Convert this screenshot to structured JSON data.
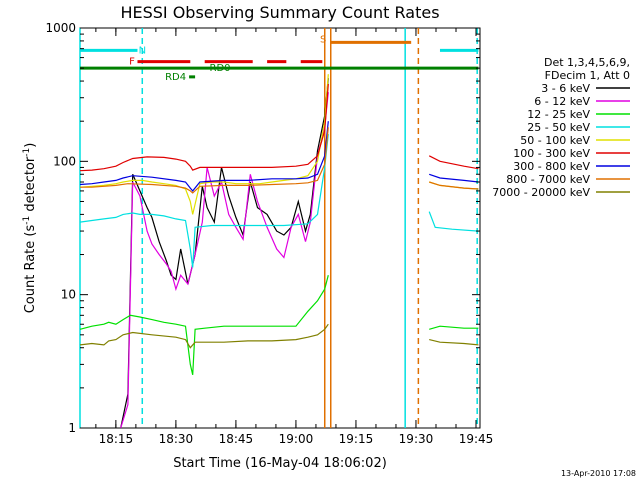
{
  "chart_data": {
    "type": "line",
    "title": "HESSI Observing Summary Count Rates",
    "xlabel": "Start Time (16-May-04 18:06:02)",
    "ylabel_main": "Count Rate (s",
    "ylabel_sup1": "-1",
    "ylabel_mid": " detector",
    "ylabel_sup2": "-1",
    "ylabel_end": ")",
    "y_scale": "log",
    "ylim": [
      1,
      1000
    ],
    "xlim": [
      18.1006,
      19.7667
    ],
    "y_ticks": [
      {
        "value": 1,
        "label": "1"
      },
      {
        "value": 10,
        "label": "10"
      },
      {
        "value": 100,
        "label": "100"
      },
      {
        "value": 1000,
        "label": "1000"
      }
    ],
    "x_ticks": [
      {
        "value": 18.25,
        "label": "18:15"
      },
      {
        "value": 18.5,
        "label": "18:30"
      },
      {
        "value": 18.75,
        "label": "18:45"
      },
      {
        "value": 19.0,
        "label": "19:00"
      },
      {
        "value": 19.25,
        "label": "19:15"
      },
      {
        "value": 19.5,
        "label": "19:30"
      },
      {
        "value": 19.75,
        "label": "19:45"
      }
    ],
    "legend_header": [
      "Det 1,3,4,5,6,9,",
      "FDecim 1, Att 0"
    ],
    "legend_position": "right",
    "series": [
      {
        "name": "3 - 6 keV",
        "color": "#000000",
        "points": [
          [
            18.27,
            1
          ],
          [
            18.3,
            1.8
          ],
          [
            18.32,
            80
          ],
          [
            18.35,
            60
          ],
          [
            18.38,
            45
          ],
          [
            18.4,
            38
          ],
          [
            18.43,
            25
          ],
          [
            18.46,
            18
          ],
          [
            18.48,
            14
          ],
          [
            18.5,
            13
          ],
          [
            18.52,
            22
          ],
          [
            18.55,
            12
          ],
          [
            18.58,
            20
          ],
          [
            18.61,
            65
          ],
          [
            18.63,
            45
          ],
          [
            18.66,
            35
          ],
          [
            18.69,
            90
          ],
          [
            18.72,
            55
          ],
          [
            18.75,
            38
          ],
          [
            18.78,
            28
          ],
          [
            18.81,
            70
          ],
          [
            18.84,
            45
          ],
          [
            18.88,
            40
          ],
          [
            18.92,
            30
          ],
          [
            18.95,
            28
          ],
          [
            18.98,
            32
          ],
          [
            19.01,
            50
          ],
          [
            19.04,
            30
          ],
          [
            19.06,
            40
          ],
          [
            19.09,
            120
          ],
          [
            19.12,
            220
          ],
          [
            19.135,
            420
          ]
        ],
        "gaps_after": []
      },
      {
        "name": "6 - 12 keV",
        "color": "#e000e0",
        "points": [
          [
            18.27,
            1
          ],
          [
            18.3,
            1.5
          ],
          [
            18.32,
            70
          ],
          [
            18.35,
            55
          ],
          [
            18.38,
            30
          ],
          [
            18.4,
            24
          ],
          [
            18.43,
            20
          ],
          [
            18.46,
            17
          ],
          [
            18.48,
            15
          ],
          [
            18.5,
            11
          ],
          [
            18.52,
            14
          ],
          [
            18.55,
            12
          ],
          [
            18.58,
            20
          ],
          [
            18.61,
            35
          ],
          [
            18.63,
            90
          ],
          [
            18.66,
            55
          ],
          [
            18.69,
            70
          ],
          [
            18.72,
            40
          ],
          [
            18.75,
            32
          ],
          [
            18.78,
            26
          ],
          [
            18.81,
            80
          ],
          [
            18.84,
            50
          ],
          [
            18.88,
            32
          ],
          [
            18.92,
            22
          ],
          [
            18.95,
            19
          ],
          [
            18.98,
            32
          ],
          [
            19.01,
            40
          ],
          [
            19.04,
            25
          ],
          [
            19.06,
            35
          ],
          [
            19.09,
            110
          ],
          [
            19.12,
            180
          ],
          [
            19.135,
            330
          ]
        ],
        "gaps_after": []
      },
      {
        "name": "12 - 25 keV",
        "color": "#00e000",
        "points": [
          [
            18.1006,
            5.5
          ],
          [
            18.15,
            5.8
          ],
          [
            18.2,
            6.0
          ],
          [
            18.22,
            6.2
          ],
          [
            18.25,
            6.0
          ],
          [
            18.28,
            6.5
          ],
          [
            18.31,
            7.0
          ],
          [
            18.35,
            6.8
          ],
          [
            18.4,
            6.5
          ],
          [
            18.45,
            6.2
          ],
          [
            18.5,
            6.0
          ],
          [
            18.54,
            5.8
          ],
          [
            18.56,
            3.0
          ],
          [
            18.57,
            2.5
          ],
          [
            18.58,
            5.5
          ],
          [
            18.62,
            5.6
          ],
          [
            18.7,
            5.8
          ],
          [
            18.8,
            5.8
          ],
          [
            18.9,
            5.8
          ],
          [
            19.0,
            5.8
          ],
          [
            19.05,
            7.5
          ],
          [
            19.09,
            9.0
          ],
          [
            19.12,
            11
          ],
          [
            19.135,
            14
          ],
          [
            19.555,
            5.5
          ],
          [
            19.6,
            5.8
          ],
          [
            19.7,
            5.6
          ],
          [
            19.76,
            5.6
          ]
        ],
        "gaps_after": [
          23
        ]
      },
      {
        "name": "25 - 50 keV",
        "color": "#00e0e0",
        "points": [
          [
            18.1006,
            35
          ],
          [
            18.15,
            36
          ],
          [
            18.2,
            37
          ],
          [
            18.25,
            38
          ],
          [
            18.28,
            40
          ],
          [
            18.32,
            41
          ],
          [
            18.35,
            40
          ],
          [
            18.4,
            40
          ],
          [
            18.45,
            39
          ],
          [
            18.5,
            37
          ],
          [
            18.54,
            36
          ],
          [
            18.56,
            22
          ],
          [
            18.57,
            16
          ],
          [
            18.58,
            32
          ],
          [
            18.65,
            33
          ],
          [
            18.75,
            33
          ],
          [
            18.85,
            33
          ],
          [
            18.95,
            33
          ],
          [
            19.05,
            34
          ],
          [
            19.09,
            40
          ],
          [
            19.12,
            90
          ],
          [
            19.135,
            160
          ],
          [
            19.555,
            42
          ],
          [
            19.58,
            32
          ],
          [
            19.65,
            31
          ],
          [
            19.76,
            30
          ]
        ],
        "gaps_after": [
          21
        ]
      },
      {
        "name": "50 - 100 keV",
        "color": "#e0e000",
        "points": [
          [
            18.1006,
            64
          ],
          [
            18.15,
            65
          ],
          [
            18.2,
            66
          ],
          [
            18.25,
            68
          ],
          [
            18.28,
            70
          ],
          [
            18.32,
            72
          ],
          [
            18.36,
            72
          ],
          [
            18.4,
            70
          ],
          [
            18.45,
            68
          ],
          [
            18.5,
            66
          ],
          [
            18.54,
            62
          ],
          [
            18.56,
            50
          ],
          [
            18.57,
            40
          ],
          [
            18.6,
            68
          ],
          [
            18.65,
            70
          ],
          [
            18.7,
            70
          ],
          [
            18.75,
            68
          ],
          [
            18.8,
            68
          ],
          [
            18.85,
            68
          ],
          [
            18.9,
            70
          ],
          [
            18.95,
            72
          ],
          [
            19.0,
            74
          ],
          [
            19.05,
            78
          ],
          [
            19.09,
            100
          ],
          [
            19.12,
            200
          ],
          [
            19.135,
            450
          ],
          [
            19.555,
            70
          ],
          [
            19.6,
            66
          ],
          [
            19.7,
            63
          ],
          [
            19.76,
            62
          ]
        ],
        "gaps_after": [
          25
        ]
      },
      {
        "name": "100 - 300 keV",
        "color": "#e00000",
        "points": [
          [
            18.1006,
            85
          ],
          [
            18.15,
            86
          ],
          [
            18.2,
            88
          ],
          [
            18.25,
            92
          ],
          [
            18.28,
            98
          ],
          [
            18.32,
            105
          ],
          [
            18.38,
            108
          ],
          [
            18.45,
            107
          ],
          [
            18.5,
            104
          ],
          [
            18.54,
            100
          ],
          [
            18.56,
            92
          ],
          [
            18.57,
            86
          ],
          [
            18.6,
            90
          ],
          [
            18.7,
            90
          ],
          [
            18.8,
            90
          ],
          [
            18.9,
            90
          ],
          [
            19.0,
            92
          ],
          [
            19.05,
            95
          ],
          [
            19.09,
            110
          ],
          [
            19.12,
            170
          ],
          [
            19.135,
            380
          ],
          [
            19.555,
            110
          ],
          [
            19.6,
            100
          ],
          [
            19.7,
            92
          ],
          [
            19.76,
            88
          ]
        ],
        "gaps_after": [
          20
        ]
      },
      {
        "name": "300 - 800 keV",
        "color": "#0000e0",
        "points": [
          [
            18.1006,
            67
          ],
          [
            18.15,
            68
          ],
          [
            18.2,
            70
          ],
          [
            18.25,
            72
          ],
          [
            18.28,
            75
          ],
          [
            18.32,
            78
          ],
          [
            18.4,
            76
          ],
          [
            18.5,
            72
          ],
          [
            18.54,
            70
          ],
          [
            18.56,
            63
          ],
          [
            18.57,
            60
          ],
          [
            18.6,
            70
          ],
          [
            18.7,
            72
          ],
          [
            18.8,
            72
          ],
          [
            18.9,
            74
          ],
          [
            19.0,
            74
          ],
          [
            19.05,
            75
          ],
          [
            19.09,
            80
          ],
          [
            19.12,
            110
          ],
          [
            19.135,
            200
          ],
          [
            19.555,
            80
          ],
          [
            19.6,
            75
          ],
          [
            19.7,
            72
          ],
          [
            19.76,
            70
          ]
        ],
        "gaps_after": [
          19
        ]
      },
      {
        "name": "800 - 7000 keV",
        "color": "#e07000",
        "points": [
          [
            18.1006,
            64
          ],
          [
            18.15,
            64
          ],
          [
            18.2,
            65
          ],
          [
            18.25,
            66
          ],
          [
            18.3,
            68
          ],
          [
            18.4,
            67
          ],
          [
            18.5,
            65
          ],
          [
            18.54,
            63
          ],
          [
            18.56,
            60
          ],
          [
            18.57,
            58
          ],
          [
            18.6,
            65
          ],
          [
            18.7,
            66
          ],
          [
            18.8,
            66
          ],
          [
            18.9,
            67
          ],
          [
            19.0,
            68
          ],
          [
            19.05,
            69
          ],
          [
            19.09,
            72
          ],
          [
            19.12,
            95
          ],
          [
            19.135,
            180
          ],
          [
            19.555,
            70
          ],
          [
            19.6,
            66
          ],
          [
            19.7,
            63
          ],
          [
            19.76,
            62
          ]
        ],
        "gaps_after": [
          18
        ]
      },
      {
        "name": "7000 - 20000 keV",
        "color": "#808000",
        "points": [
          [
            18.1006,
            4.2
          ],
          [
            18.15,
            4.3
          ],
          [
            18.2,
            4.2
          ],
          [
            18.22,
            4.5
          ],
          [
            18.25,
            4.6
          ],
          [
            18.28,
            5.0
          ],
          [
            18.32,
            5.2
          ],
          [
            18.4,
            5.0
          ],
          [
            18.5,
            4.8
          ],
          [
            18.54,
            4.6
          ],
          [
            18.56,
            4.0
          ],
          [
            18.58,
            4.4
          ],
          [
            18.7,
            4.4
          ],
          [
            18.8,
            4.5
          ],
          [
            18.9,
            4.5
          ],
          [
            19.0,
            4.6
          ],
          [
            19.05,
            4.8
          ],
          [
            19.09,
            5.0
          ],
          [
            19.12,
            5.5
          ],
          [
            19.135,
            6.0
          ],
          [
            19.555,
            4.6
          ],
          [
            19.6,
            4.4
          ],
          [
            19.7,
            4.3
          ],
          [
            19.76,
            4.2
          ]
        ],
        "gaps_after": [
          19
        ]
      }
    ],
    "vertical_lines": [
      {
        "x": 18.1006,
        "color": "#00e0e0",
        "style": "solid"
      },
      {
        "x": 18.36,
        "color": "#00e0e0",
        "style": "dashed"
      },
      {
        "x": 19.12,
        "color": "#e07000",
        "style": "solid"
      },
      {
        "x": 19.145,
        "color": "#e07000",
        "style": "solid"
      },
      {
        "x": 19.455,
        "color": "#00e0e0",
        "style": "solid"
      },
      {
        "x": 19.51,
        "color": "#e07000",
        "style": "dashed"
      },
      {
        "x": 19.755,
        "color": "#00e0e0",
        "style": "dashed"
      }
    ],
    "flag_bars": [
      {
        "label": "N",
        "color": "#00e0e0",
        "y": 680,
        "segments": [
          [
            18.1006,
            18.34
          ],
          [
            19.6,
            19.76
          ]
        ],
        "label_x": 18.345
      },
      {
        "label": "F",
        "color": "#e00000",
        "y": 560,
        "segments": [
          [
            18.34,
            18.56
          ],
          [
            18.62,
            18.82
          ],
          [
            18.88,
            18.96
          ],
          [
            19.02,
            19.11
          ]
        ],
        "dashes": true,
        "label_x": 18.305
      },
      {
        "label": "S",
        "color": "#e07000",
        "y": 780,
        "segments": [
          [
            19.145,
            19.48
          ]
        ],
        "label_x": 19.1
      },
      {
        "label": "RD0",
        "color": "#008000",
        "y": 500,
        "segments": [
          [
            18.1006,
            19.76
          ]
        ],
        "label_x": 18.64
      },
      {
        "label": "RD4",
        "color": "#008000",
        "y": 430,
        "segments": [
          [
            18.555,
            18.58
          ]
        ],
        "label_x": 18.455
      }
    ],
    "footer_date": "13-Apr-2010 17:08"
  }
}
